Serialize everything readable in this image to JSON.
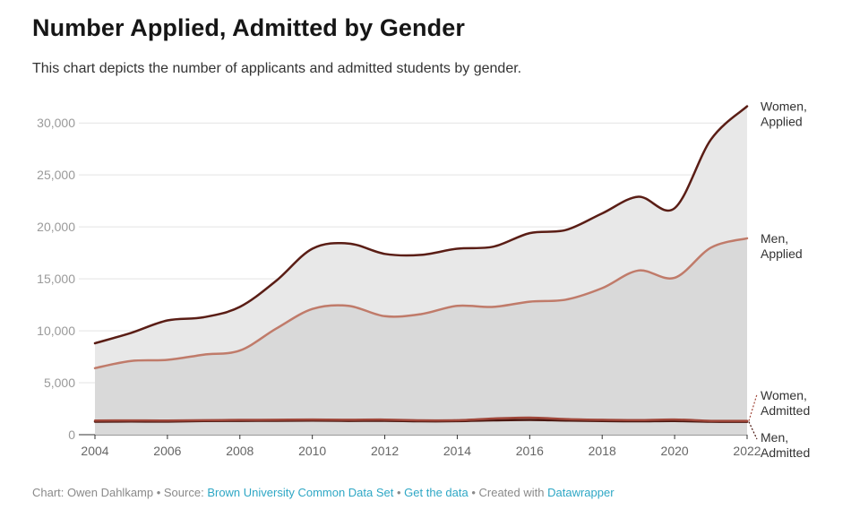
{
  "chart_data": {
    "type": "area",
    "title": "Number Applied, Admitted by Gender",
    "subtitle": "This chart depicts the number of applicants and admitted students by gender.",
    "xlabel": "",
    "ylabel": "",
    "x": [
      2004,
      2005,
      2006,
      2007,
      2008,
      2009,
      2010,
      2011,
      2012,
      2013,
      2014,
      2015,
      2016,
      2017,
      2018,
      2019,
      2020,
      2021,
      2022
    ],
    "xticks": [
      "2004",
      "2006",
      "2008",
      "2010",
      "2012",
      "2014",
      "2016",
      "2018",
      "2020",
      "2022"
    ],
    "yticks": [
      "0",
      "5,000",
      "10,000",
      "15,000",
      "20,000",
      "25,000",
      "30,000"
    ],
    "ylim": [
      0,
      32000
    ],
    "grid": true,
    "series": [
      {
        "name": "Women, Applied",
        "label_lines": [
          "Women,",
          "Applied"
        ],
        "color": "#5a1d15",
        "fill": "#e8e8e8",
        "values": [
          8800,
          9800,
          11000,
          11300,
          12300,
          14800,
          17900,
          18400,
          17400,
          17300,
          17900,
          18100,
          19400,
          19700,
          21300,
          22900,
          21800,
          28400,
          31600
        ]
      },
      {
        "name": "Men, Applied",
        "label_lines": [
          "Men,",
          "Applied"
        ],
        "color": "#c07b6a",
        "fill": "#d9d9d9",
        "values": [
          6400,
          7100,
          7200,
          7700,
          8100,
          10200,
          12100,
          12400,
          11400,
          11600,
          12400,
          12300,
          12800,
          13000,
          14100,
          15800,
          15100,
          18000,
          18900
        ]
      },
      {
        "name": "Women, Admitted",
        "label_lines": [
          "Women,",
          "Admitted"
        ],
        "color": "#a0473a",
        "fill": "#d9d9d9",
        "values": [
          1350,
          1370,
          1360,
          1390,
          1420,
          1430,
          1460,
          1430,
          1450,
          1380,
          1390,
          1550,
          1640,
          1500,
          1430,
          1400,
          1460,
          1330,
          1330
        ]
      },
      {
        "name": "Men, Admitted",
        "label_lines": [
          "Men,",
          "Admitted"
        ],
        "color": "#4a1710",
        "fill": "#d9d9d9",
        "values": [
          1250,
          1270,
          1260,
          1310,
          1330,
          1340,
          1350,
          1330,
          1340,
          1290,
          1300,
          1380,
          1420,
          1360,
          1310,
          1290,
          1320,
          1250,
          1240
        ]
      }
    ]
  },
  "footer": {
    "prefix": "Chart: Owen Dahlkamp • Source: ",
    "source_link": "Brown University Common Data Set",
    "sep1": " • ",
    "data_link": "Get the data",
    "sep2": " • Created with ",
    "tool_link": "Datawrapper"
  }
}
